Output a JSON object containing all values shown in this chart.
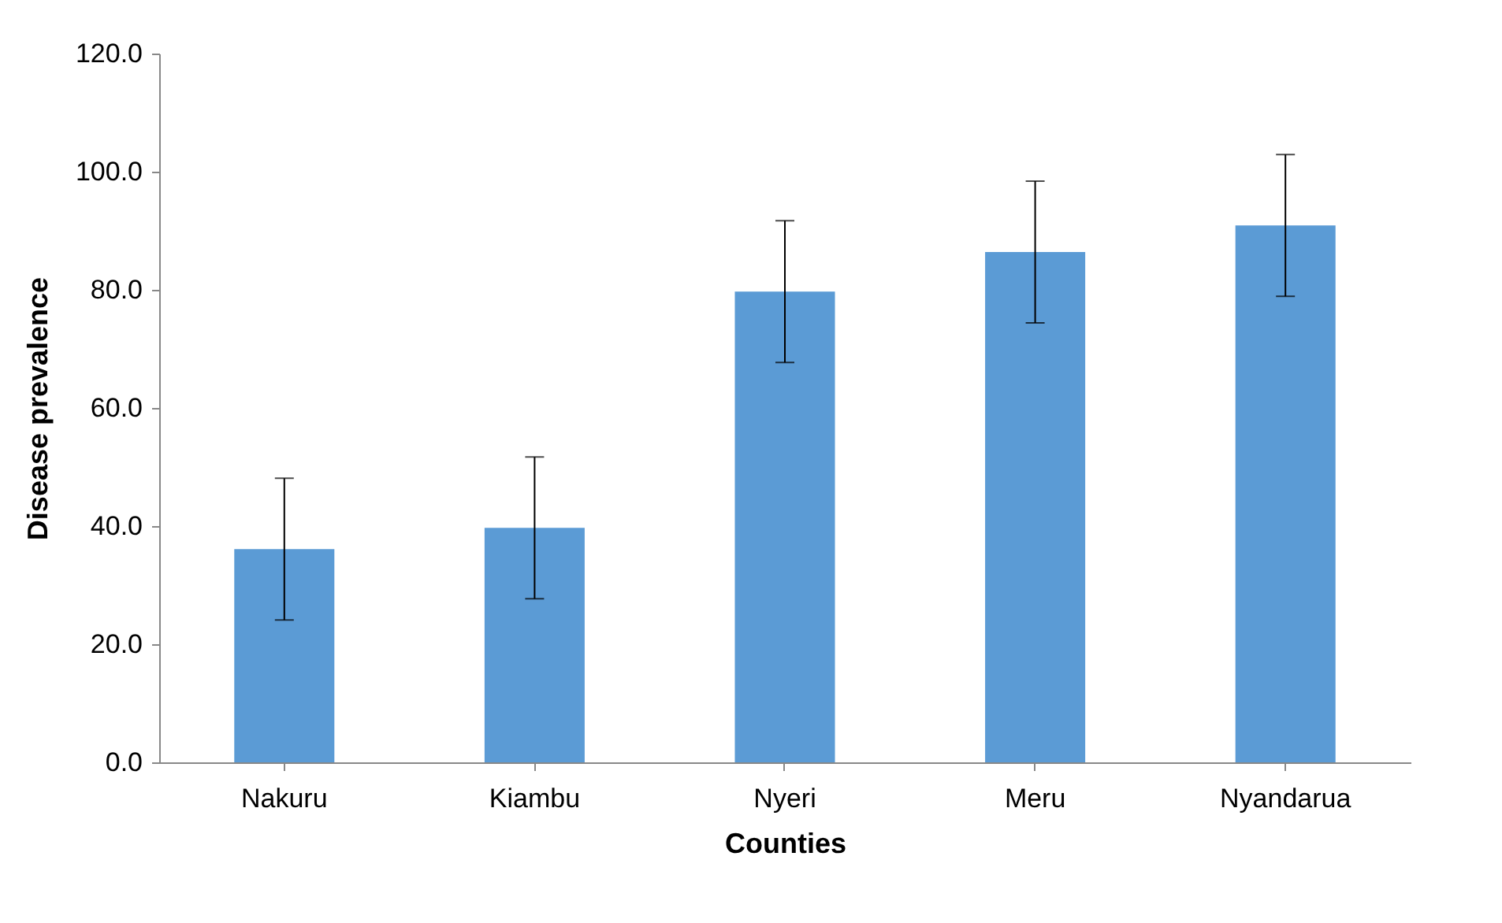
{
  "chart_data": {
    "type": "bar",
    "xlabel": "Counties",
    "ylabel": "Disease prevalence",
    "categories": [
      "Nakuru",
      "Kiambu",
      "Nyeri",
      "Meru",
      "Nyandarua"
    ],
    "series": [
      {
        "color": "#5b9bd5",
        "values": [
          36.1,
          39.7,
          79.7,
          86.4,
          90.9
        ],
        "errors": [
          12,
          12,
          12,
          12,
          12
        ]
      }
    ],
    "ylim": [
      0,
      120
    ],
    "yticks": [
      {
        "value": 0,
        "label": "0.0"
      },
      {
        "value": 20,
        "label": "20.0"
      },
      {
        "value": 40,
        "label": "40.0"
      },
      {
        "value": 60,
        "label": "60.0"
      },
      {
        "value": 80,
        "label": "80.0"
      },
      {
        "value": 100,
        "label": "100.0"
      },
      {
        "value": 120,
        "label": "120.0"
      }
    ],
    "grid": false
  }
}
